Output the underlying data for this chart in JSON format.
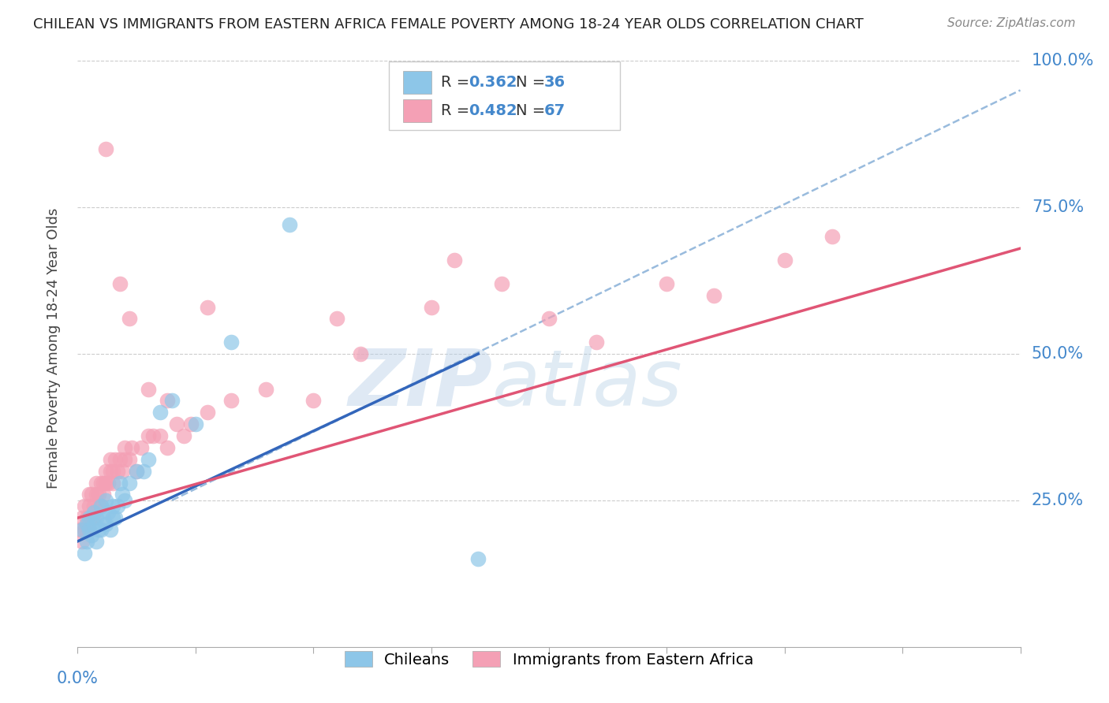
{
  "title": "CHILEAN VS IMMIGRANTS FROM EASTERN AFRICA FEMALE POVERTY AMONG 18-24 YEAR OLDS CORRELATION CHART",
  "source": "Source: ZipAtlas.com",
  "ylabel": "Female Poverty Among 18-24 Year Olds",
  "legend_label1": "Chileans",
  "legend_label2": "Immigrants from Eastern Africa",
  "color_blue": "#8dc6e8",
  "color_pink": "#f4a0b5",
  "color_blue_line": "#3366bb",
  "color_pink_line": "#e05575",
  "color_dashed": "#99bbdd",
  "background": "#ffffff",
  "watermark_zip": "ZIP",
  "watermark_atlas": "atlas",
  "xlim": [
    0.0,
    0.4
  ],
  "ylim": [
    0.0,
    1.02
  ],
  "blue_scatter_x": [
    0.002,
    0.003,
    0.004,
    0.004,
    0.005,
    0.005,
    0.006,
    0.007,
    0.007,
    0.008,
    0.008,
    0.009,
    0.01,
    0.01,
    0.011,
    0.012,
    0.012,
    0.013,
    0.014,
    0.015,
    0.015,
    0.016,
    0.017,
    0.018,
    0.019,
    0.02,
    0.022,
    0.025,
    0.028,
    0.03,
    0.035,
    0.04,
    0.05,
    0.065,
    0.09,
    0.17
  ],
  "blue_scatter_y": [
    0.2,
    0.16,
    0.18,
    0.21,
    0.2,
    0.22,
    0.19,
    0.21,
    0.23,
    0.18,
    0.22,
    0.2,
    0.2,
    0.24,
    0.22,
    0.21,
    0.25,
    0.23,
    0.2,
    0.22,
    0.24,
    0.22,
    0.24,
    0.28,
    0.26,
    0.25,
    0.28,
    0.3,
    0.3,
    0.32,
    0.4,
    0.42,
    0.38,
    0.52,
    0.72,
    0.15
  ],
  "pink_scatter_x": [
    0.001,
    0.002,
    0.002,
    0.003,
    0.003,
    0.004,
    0.004,
    0.005,
    0.005,
    0.005,
    0.006,
    0.006,
    0.007,
    0.007,
    0.008,
    0.008,
    0.009,
    0.009,
    0.01,
    0.01,
    0.011,
    0.011,
    0.012,
    0.012,
    0.013,
    0.014,
    0.014,
    0.015,
    0.015,
    0.016,
    0.017,
    0.018,
    0.019,
    0.02,
    0.02,
    0.022,
    0.023,
    0.025,
    0.027,
    0.03,
    0.032,
    0.035,
    0.038,
    0.042,
    0.048,
    0.055,
    0.065,
    0.08,
    0.1,
    0.12,
    0.15,
    0.18,
    0.22,
    0.27,
    0.32,
    0.038,
    0.055,
    0.11,
    0.16,
    0.2,
    0.25,
    0.3,
    0.018,
    0.022,
    0.012,
    0.03,
    0.045
  ],
  "pink_scatter_y": [
    0.2,
    0.18,
    0.22,
    0.2,
    0.24,
    0.2,
    0.22,
    0.2,
    0.24,
    0.26,
    0.22,
    0.26,
    0.22,
    0.24,
    0.26,
    0.28,
    0.24,
    0.26,
    0.24,
    0.28,
    0.26,
    0.28,
    0.28,
    0.3,
    0.28,
    0.3,
    0.32,
    0.28,
    0.3,
    0.32,
    0.3,
    0.32,
    0.3,
    0.32,
    0.34,
    0.32,
    0.34,
    0.3,
    0.34,
    0.36,
    0.36,
    0.36,
    0.34,
    0.38,
    0.38,
    0.4,
    0.42,
    0.44,
    0.42,
    0.5,
    0.58,
    0.62,
    0.52,
    0.6,
    0.7,
    0.42,
    0.58,
    0.56,
    0.66,
    0.56,
    0.62,
    0.66,
    0.62,
    0.56,
    0.85,
    0.44,
    0.36
  ],
  "blue_line_x": [
    0.0,
    0.17
  ],
  "blue_line_y": [
    0.18,
    0.5
  ],
  "pink_line_x": [
    0.0,
    0.4
  ],
  "pink_line_y": [
    0.22,
    0.68
  ],
  "dashed_line_x": [
    0.04,
    0.4
  ],
  "dashed_line_y": [
    0.25,
    0.95
  ]
}
